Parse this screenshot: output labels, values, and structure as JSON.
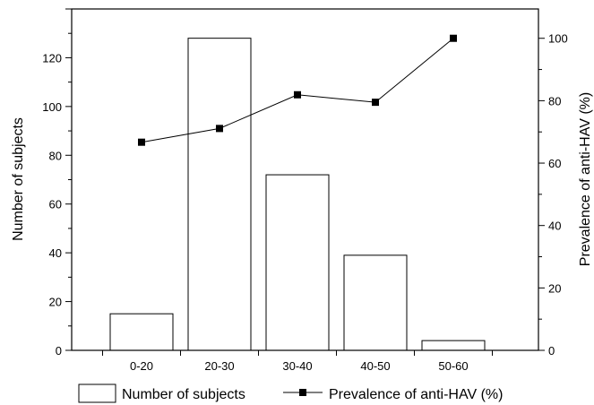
{
  "chart_data": {
    "type": "bar",
    "categories": [
      "0-20",
      "20-30",
      "30-40",
      "40-50",
      "50-60"
    ],
    "series": [
      {
        "name": "Number of subjects",
        "kind": "bar",
        "axis": "left",
        "values": [
          15,
          128,
          72,
          39,
          4
        ],
        "color": "#ffffff",
        "stroke": "#000000"
      },
      {
        "name": "Prevalence of anti-HAV (%)",
        "kind": "line",
        "axis": "right",
        "values": [
          66.7,
          71.1,
          81.9,
          79.5,
          100
        ],
        "color": "#000000",
        "marker": "square"
      }
    ],
    "xlabel": "",
    "ylabel": "Number of subjects",
    "y2label": "Prevalence of anti-HAV (%)",
    "ylim": [
      0,
      140
    ],
    "y2lim": [
      0,
      109.4
    ],
    "yticks": [
      0,
      20,
      40,
      60,
      80,
      100,
      120
    ],
    "y2ticks": [
      0,
      20,
      40,
      60,
      80,
      100
    ],
    "grid": false,
    "legend_position": "bottom"
  }
}
